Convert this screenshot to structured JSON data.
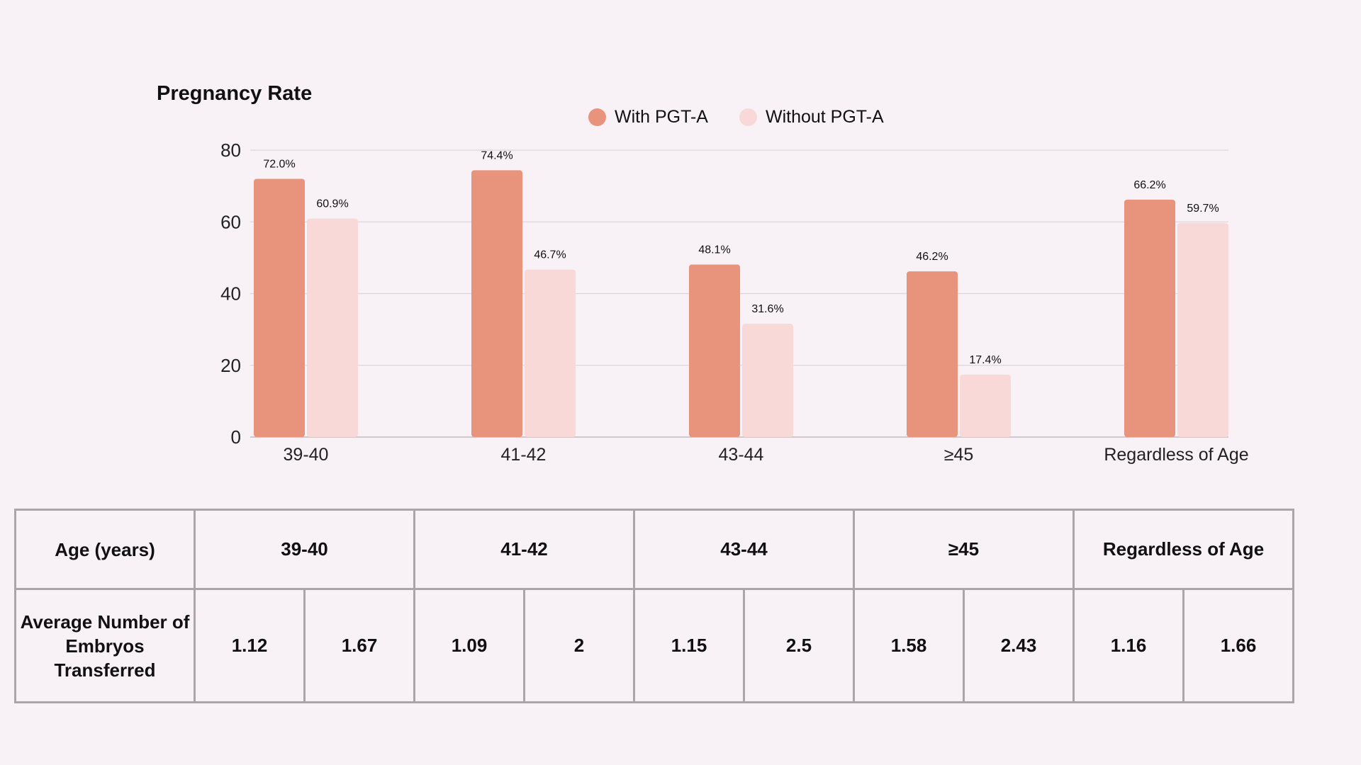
{
  "colors": {
    "with": "#e8937b",
    "without": "#f9d9d7",
    "grid": "#dcd6da",
    "background": "#f8f1f5"
  },
  "chart_data": {
    "type": "bar",
    "title": "Pregnancy Rate",
    "legend": [
      "With PGT-A",
      "Without PGT-A"
    ],
    "legend_position": "top-center",
    "categories": [
      "39-40",
      "41-42",
      "43-44",
      "≥45",
      "Regardless of Age"
    ],
    "series": [
      {
        "name": "With PGT-A",
        "values": [
          72.0,
          74.4,
          48.1,
          46.2,
          66.2
        ],
        "labels": [
          "72.0%",
          "74.4%",
          "48.1%",
          "46.2%",
          "66.2%"
        ]
      },
      {
        "name": "Without PGT-A",
        "values": [
          60.9,
          46.7,
          31.6,
          17.4,
          59.7
        ],
        "labels": [
          "60.9%",
          "46.7%",
          "31.6%",
          "17.4%",
          "59.7%"
        ]
      }
    ],
    "yticks": [
      "0",
      "20",
      "40",
      "60",
      "80"
    ],
    "ylim": [
      0,
      80
    ],
    "grid": true
  },
  "table": {
    "header_label": "Age (years)",
    "groups": [
      "39-40",
      "41-42",
      "43-44",
      "≥45",
      "Regardless of Age"
    ],
    "row_label": "Average Number of Embryos Transferred",
    "values": [
      "1.12",
      "1.67",
      "1.09",
      "2",
      "1.15",
      "2.5",
      "1.58",
      "2.43",
      "1.16",
      "1.66"
    ]
  }
}
